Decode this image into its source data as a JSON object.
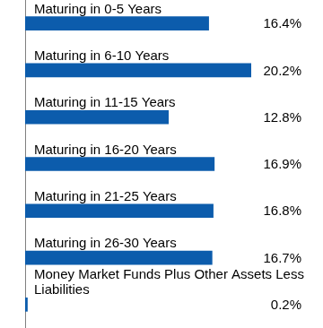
{
  "chart_data": {
    "type": "bar",
    "orientation": "horizontal",
    "categories": [
      "Maturing in 0-5 Years",
      "Maturing in 6-10 Years",
      "Maturing in 11-15 Years",
      "Maturing in 16-20 Years",
      "Maturing in 21-25 Years",
      "Maturing in 26-30 Years",
      "Money Market Funds Plus Other Assets Less Liabilities"
    ],
    "values": [
      16.4,
      20.2,
      12.8,
      16.9,
      16.8,
      16.7,
      0.2
    ],
    "value_labels": [
      "16.4%",
      "20.2%",
      "12.8%",
      "16.9%",
      "16.8%",
      "16.7%",
      "0.2%"
    ],
    "color": "#0c5cac",
    "xlim": [
      0,
      20.2
    ],
    "grid": false,
    "data_labels": true,
    "tick_labels": false
  }
}
